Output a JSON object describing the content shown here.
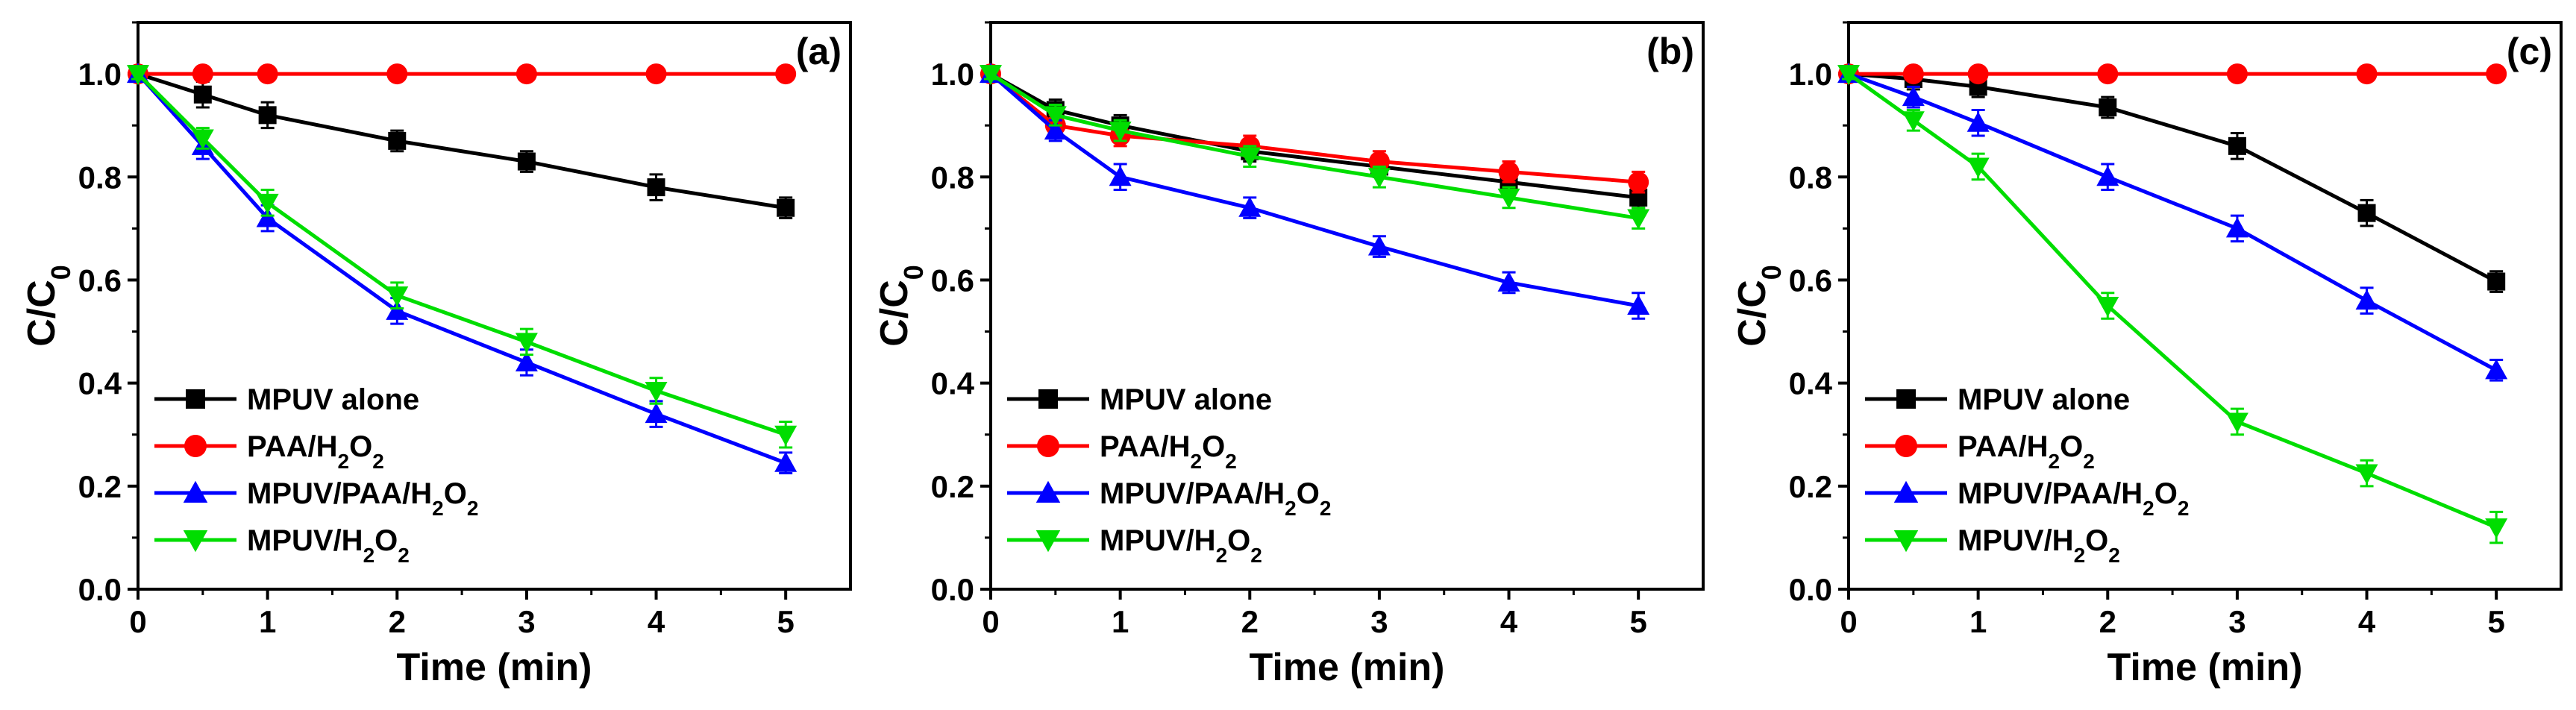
{
  "chart_data": [
    {
      "type": "line",
      "panel_label": "(a)",
      "xlabel": "Time (min)",
      "ylabel": "C/C",
      "ylabel_sub": "0",
      "xlim": [
        0,
        5.5
      ],
      "ylim": [
        0,
        1.1
      ],
      "xticks": [
        "0",
        "1",
        "2",
        "3",
        "4",
        "5"
      ],
      "yticks": [
        "0.0",
        "0.2",
        "0.4",
        "0.6",
        "0.8",
        "1.0"
      ],
      "legend_position": "bottom-left",
      "series": [
        {
          "name": "MPUV alone",
          "label_main": "MPUV alone",
          "label_sub": "",
          "label_tail": "",
          "marker": "square",
          "color": "#000000",
          "x": [
            0,
            0.5,
            1,
            2,
            3,
            4,
            5
          ],
          "y": [
            1.0,
            0.96,
            0.92,
            0.87,
            0.83,
            0.78,
            0.74
          ],
          "err": [
            0.01,
            0.025,
            0.025,
            0.02,
            0.02,
            0.025,
            0.02
          ]
        },
        {
          "name": "PAA/H2O2",
          "label_main": "PAA/H",
          "label_sub": "2",
          "label_tail": "O",
          "label_sub2": "2",
          "marker": "circle",
          "color": "#ff0000",
          "x": [
            0,
            0.5,
            1,
            2,
            3,
            4,
            5
          ],
          "y": [
            1.0,
            1.0,
            1.0,
            1.0,
            1.0,
            1.0,
            1.0
          ],
          "err": [
            0,
            0,
            0,
            0,
            0,
            0,
            0
          ]
        },
        {
          "name": "MPUV/PAA/H2O2",
          "label_main": "MPUV/PAA/H",
          "label_sub": "2",
          "label_tail": "O",
          "label_sub2": "2",
          "marker": "triangle-up",
          "color": "#0000ff",
          "x": [
            0,
            0.5,
            1,
            2,
            3,
            4,
            5
          ],
          "y": [
            1.0,
            0.86,
            0.72,
            0.54,
            0.44,
            0.34,
            0.245
          ],
          "err": [
            0.01,
            0.025,
            0.025,
            0.025,
            0.025,
            0.025,
            0.02
          ]
        },
        {
          "name": "MPUV/H2O2",
          "label_main": "MPUV/H",
          "label_sub": "2",
          "label_tail": "O",
          "label_sub2": "2",
          "marker": "triangle-down",
          "color": "#00dd00",
          "x": [
            0,
            0.5,
            1,
            2,
            3,
            4,
            5
          ],
          "y": [
            1.0,
            0.875,
            0.75,
            0.57,
            0.48,
            0.385,
            0.3
          ],
          "err": [
            0.01,
            0.02,
            0.025,
            0.025,
            0.025,
            0.025,
            0.025
          ]
        }
      ]
    },
    {
      "type": "line",
      "panel_label": "(b)",
      "xlabel": "Time (min)",
      "ylabel": "C/C",
      "ylabel_sub": "0",
      "xlim": [
        0,
        5.5
      ],
      "ylim": [
        0,
        1.1
      ],
      "xticks": [
        "0",
        "1",
        "2",
        "3",
        "4",
        "5"
      ],
      "yticks": [
        "0.0",
        "0.2",
        "0.4",
        "0.6",
        "0.8",
        "1.0"
      ],
      "legend_position": "bottom-left",
      "series": [
        {
          "name": "MPUV alone",
          "label_main": "MPUV alone",
          "label_sub": "",
          "label_tail": "",
          "marker": "square",
          "color": "#000000",
          "x": [
            0,
            0.5,
            1,
            2,
            3,
            4,
            5
          ],
          "y": [
            1.0,
            0.93,
            0.9,
            0.85,
            0.82,
            0.79,
            0.76
          ],
          "err": [
            0.01,
            0.02,
            0.02,
            0.02,
            0.02,
            0.02,
            0.02
          ]
        },
        {
          "name": "PAA/H2O2",
          "label_main": "PAA/H",
          "label_sub": "2",
          "label_tail": "O",
          "label_sub2": "2",
          "marker": "circle",
          "color": "#ff0000",
          "x": [
            0,
            0.5,
            1,
            2,
            3,
            4,
            5
          ],
          "y": [
            1.0,
            0.9,
            0.88,
            0.86,
            0.83,
            0.81,
            0.79
          ],
          "err": [
            0.01,
            0.02,
            0.02,
            0.02,
            0.02,
            0.02,
            0.02
          ]
        },
        {
          "name": "MPUV/PAA/H2O2",
          "label_main": "MPUV/PAA/H",
          "label_sub": "2",
          "label_tail": "O",
          "label_sub2": "2",
          "marker": "triangle-up",
          "color": "#0000ff",
          "x": [
            0,
            0.5,
            1,
            2,
            3,
            4,
            5
          ],
          "y": [
            1.0,
            0.89,
            0.8,
            0.74,
            0.665,
            0.595,
            0.55
          ],
          "err": [
            0.01,
            0.02,
            0.025,
            0.02,
            0.02,
            0.02,
            0.025
          ]
        },
        {
          "name": "MPUV/H2O2",
          "label_main": "MPUV/H",
          "label_sub": "2",
          "label_tail": "O",
          "label_sub2": "2",
          "marker": "triangle-down",
          "color": "#00dd00",
          "x": [
            0,
            0.5,
            1,
            2,
            3,
            4,
            5
          ],
          "y": [
            1.0,
            0.92,
            0.89,
            0.84,
            0.8,
            0.76,
            0.72
          ],
          "err": [
            0.01,
            0.02,
            0.02,
            0.02,
            0.02,
            0.02,
            0.02
          ]
        }
      ]
    },
    {
      "type": "line",
      "panel_label": "(c)",
      "xlabel": "Time (min)",
      "ylabel": "C/C",
      "ylabel_sub": "0",
      "xlim": [
        0,
        5.5
      ],
      "ylim": [
        0,
        1.1
      ],
      "xticks": [
        "0",
        "1",
        "2",
        "3",
        "4",
        "5"
      ],
      "yticks": [
        "0.0",
        "0.2",
        "0.4",
        "0.6",
        "0.8",
        "1.0"
      ],
      "legend_position": "bottom-left",
      "series": [
        {
          "name": "MPUV alone",
          "label_main": "MPUV alone",
          "label_sub": "",
          "label_tail": "",
          "marker": "square",
          "color": "#000000",
          "x": [
            0,
            0.5,
            1,
            2,
            3,
            4,
            5
          ],
          "y": [
            1.0,
            0.99,
            0.975,
            0.935,
            0.86,
            0.73,
            0.597
          ],
          "err": [
            0.01,
            0.02,
            0.02,
            0.02,
            0.025,
            0.025,
            0.02
          ]
        },
        {
          "name": "PAA/H2O2",
          "label_main": "PAA/H",
          "label_sub": "2",
          "label_tail": "O",
          "label_sub2": "2",
          "marker": "circle",
          "color": "#ff0000",
          "x": [
            0,
            0.5,
            1,
            2,
            3,
            4,
            5
          ],
          "y": [
            1.0,
            1.0,
            1.0,
            1.0,
            1.0,
            1.0,
            1.0
          ],
          "err": [
            0,
            0,
            0,
            0,
            0,
            0,
            0
          ]
        },
        {
          "name": "MPUV/PAA/H2O2",
          "label_main": "MPUV/PAA/H",
          "label_sub": "2",
          "label_tail": "O",
          "label_sub2": "2",
          "marker": "triangle-up",
          "color": "#0000ff",
          "x": [
            0,
            0.5,
            1,
            2,
            3,
            4,
            5
          ],
          "y": [
            1.0,
            0.955,
            0.905,
            0.8,
            0.7,
            0.56,
            0.425
          ],
          "err": [
            0.01,
            0.02,
            0.025,
            0.025,
            0.025,
            0.025,
            0.02
          ]
        },
        {
          "name": "MPUV/H2O2",
          "label_main": "MPUV/H",
          "label_sub": "2",
          "label_tail": "O",
          "label_sub2": "2",
          "marker": "triangle-down",
          "color": "#00dd00",
          "x": [
            0,
            0.5,
            1,
            2,
            3,
            4,
            5
          ],
          "y": [
            1.0,
            0.91,
            0.82,
            0.55,
            0.325,
            0.225,
            0.12
          ],
          "err": [
            0.01,
            0.02,
            0.025,
            0.025,
            0.025,
            0.025,
            0.03
          ]
        }
      ]
    }
  ]
}
